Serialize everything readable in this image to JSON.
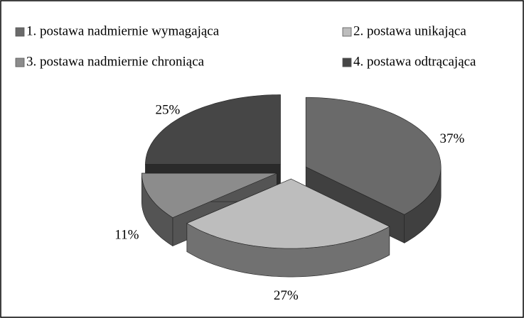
{
  "chart_data": {
    "type": "pie",
    "categories": [
      "1. postawa nadmiernie wymagająca",
      "2. postawa unikająca",
      "3. postawa nadmiernie chroniąca",
      "4. postawa odtrącająca"
    ],
    "values": [
      37,
      27,
      11,
      25
    ],
    "value_labels": [
      "37%",
      "27%",
      "11%",
      "25%"
    ],
    "colors": [
      "#6a6a6a",
      "#bdbdbd",
      "#8c8c8c",
      "#464646"
    ],
    "legend": "top"
  }
}
